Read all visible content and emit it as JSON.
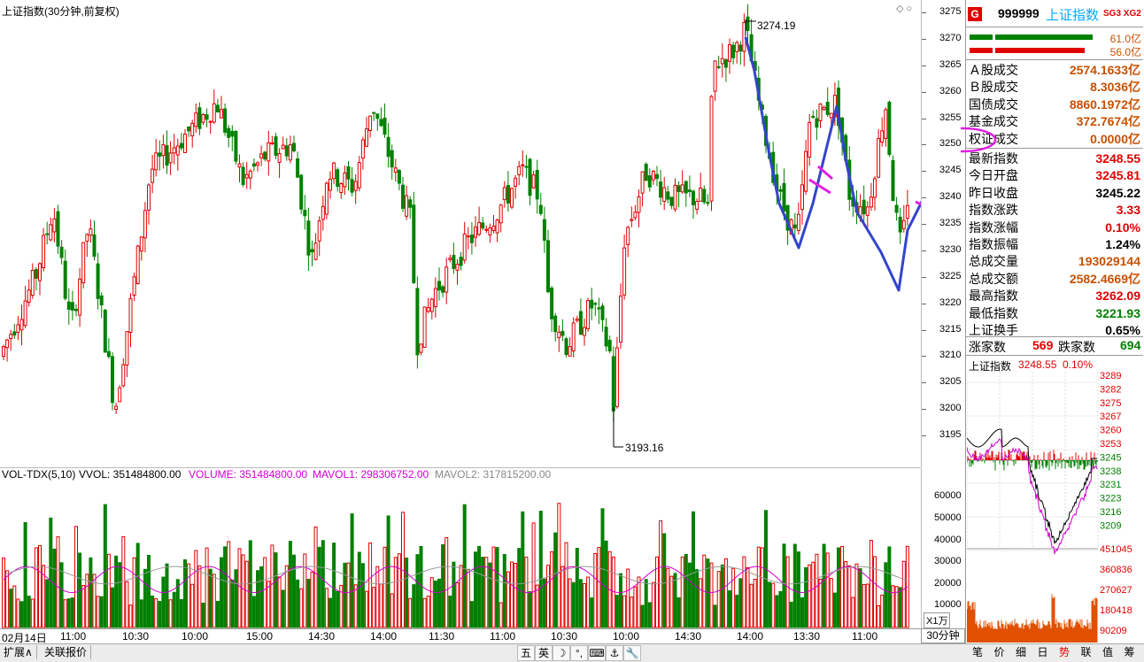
{
  "main_chart": {
    "title": "上证指数(30分钟,前复权)",
    "high_label": "3274.19",
    "low_label": "3193.16",
    "y_ticks": [
      "3275",
      "3270",
      "3265",
      "3260",
      "3255",
      "3250",
      "3245",
      "3240",
      "3235",
      "3230",
      "3225",
      "3220",
      "3215",
      "3210",
      "3205",
      "3200",
      "3195"
    ],
    "ylim": [
      3191,
      3276
    ],
    "colors": {
      "up": "#e00000",
      "down": "#008000",
      "annot_blue": "#3344cc",
      "annot_magenta": "#e020e0"
    }
  },
  "volume_chart": {
    "indicator": "VOL-TDX(5,10)",
    "vvol": "VVOL: 351484800.00",
    "volume": "VOLUME: 351484800.00",
    "mavol1": "MAVOL1: 298306752.00",
    "mavol2": "MAVOL2: 317815200.00",
    "y_ticks": [
      "60000",
      "50000",
      "40000",
      "30000",
      "20000",
      "10000"
    ],
    "unit": "X1万"
  },
  "time_axis": {
    "labels": [
      "02月14日",
      "11:00",
      "10:30",
      "10:00",
      "15:00",
      "14:30",
      "14:00",
      "11:30",
      "11:00",
      "10:30",
      "10:00",
      "14:30",
      "14:00",
      "13:30",
      "11:00"
    ],
    "period": "30分钟"
  },
  "bottom_bar": {
    "tabs": [
      "扩展∧",
      "关联报价"
    ],
    "ime": [
      "五",
      "英",
      "☽",
      "°,",
      "⌨",
      "⚓",
      "🔧"
    ],
    "side_tabs": [
      "笔",
      "价",
      "细",
      "日",
      "势",
      "联",
      "值",
      "筹"
    ]
  },
  "side_panel": {
    "badge": "G",
    "code": "999999",
    "name": "上证指数",
    "tags": "SG3 XG2",
    "bar_top_value": "61.0亿",
    "bar_bottom_value": "56.0亿",
    "stats": [
      {
        "label": "Ａ股成交",
        "value": "2574.1633亿",
        "color": "orange"
      },
      {
        "label": "Ｂ股成交",
        "value": "8.3036亿",
        "color": "orange"
      },
      {
        "label": "国债成交",
        "value": "8860.1972亿",
        "color": "orange"
      },
      {
        "label": "基金成交",
        "value": "372.7674亿",
        "color": "orange"
      },
      {
        "label": "权证成交",
        "value": "0.0000亿",
        "color": "orange"
      },
      {
        "label": "最新指数",
        "value": "3248.55",
        "color": "red"
      },
      {
        "label": "今日开盘",
        "value": "3245.81",
        "color": "red"
      },
      {
        "label": "昨日收盘",
        "value": "3245.22",
        "color": "black"
      },
      {
        "label": "指数涨跌",
        "value": "3.33",
        "color": "red"
      },
      {
        "label": "指数涨幅",
        "value": "0.10%",
        "color": "red"
      },
      {
        "label": "指数振幅",
        "value": "1.24%",
        "color": "black"
      },
      {
        "label": "总成交量",
        "value": "193029144",
        "color": "orange"
      },
      {
        "label": "总成交额",
        "value": "2582.4669亿",
        "color": "orange"
      },
      {
        "label": "最高指数",
        "value": "3262.09",
        "color": "red"
      },
      {
        "label": "最低指数",
        "value": "3221.93",
        "color": "green"
      },
      {
        "label": "上证换手",
        "value": "0.65%",
        "color": "black"
      }
    ],
    "rise_label": "涨家数",
    "rise_value": "569",
    "fall_label": "跌家数",
    "fall_value": "694",
    "mini_title": "上证指数",
    "mini_price": "3248.55",
    "mini_pct": "0.10%",
    "mini_price_ticks": [
      "3289",
      "3282",
      "3275",
      "3267",
      "3260",
      "3253",
      "3245",
      "3238",
      "3231",
      "3223",
      "3216",
      "3209"
    ],
    "mini_vol_ticks": [
      "451045",
      "360836",
      "270627",
      "180418",
      "90209"
    ]
  }
}
